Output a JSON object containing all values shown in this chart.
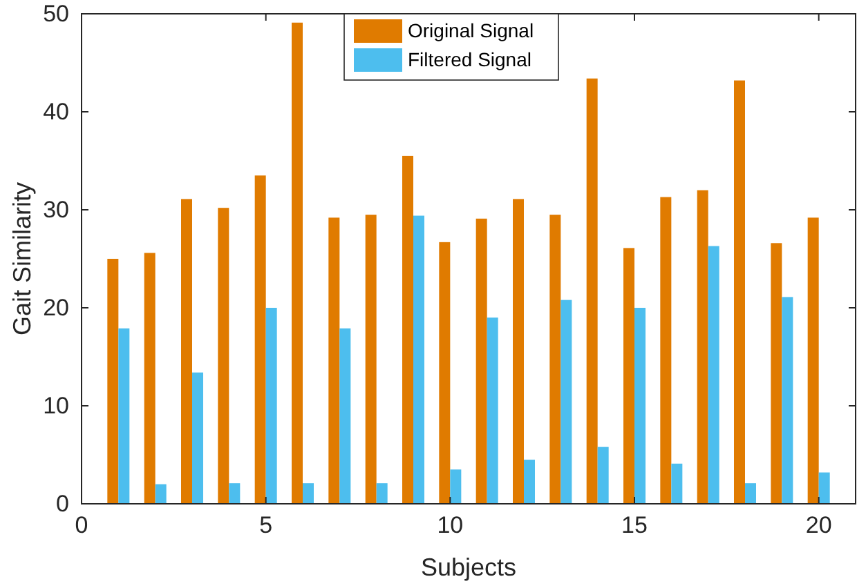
{
  "chart_data": {
    "type": "bar",
    "xlabel": "Subjects",
    "ylabel": "Gait Similarity",
    "x": [
      1,
      2,
      3,
      4,
      5,
      6,
      7,
      8,
      9,
      10,
      11,
      12,
      13,
      14,
      15,
      16,
      17,
      18,
      19,
      20
    ],
    "series": [
      {
        "name": "Original Signal",
        "color": "#e07b00",
        "values": [
          25.0,
          25.6,
          31.1,
          30.2,
          33.5,
          49.1,
          29.2,
          29.5,
          35.5,
          26.7,
          29.1,
          31.1,
          29.5,
          43.4,
          26.1,
          31.3,
          32.0,
          43.2,
          26.6,
          29.2
        ]
      },
      {
        "name": "Filtered Signal",
        "color": "#4dbeee",
        "values": [
          17.9,
          2.0,
          13.4,
          2.1,
          20.0,
          2.1,
          17.9,
          2.1,
          29.4,
          3.5,
          19.0,
          4.5,
          20.8,
          5.8,
          20.0,
          4.1,
          26.3,
          2.1,
          21.1,
          3.2
        ]
      }
    ],
    "xlim": [
      0,
      21
    ],
    "xticks": [
      0,
      5,
      10,
      15,
      20
    ],
    "ylim": [
      0,
      50
    ],
    "yticks": [
      0,
      10,
      20,
      30,
      40,
      50
    ],
    "legend": "top"
  }
}
